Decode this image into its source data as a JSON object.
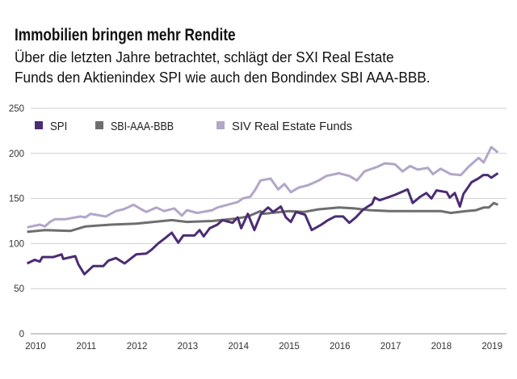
{
  "header": {
    "title": "Immobilien bringen mehr Rendite",
    "subtitle_line1": "Über die letzten Jahre betrachtet, schlägt der SXI Real Estate",
    "subtitle_line2": "Funds den Aktienindex SPI wie auch den Bondindex SBI AAA-BBB."
  },
  "chart_data": {
    "type": "line",
    "title": "Immobilien bringen mehr Rendite",
    "xlabel": "",
    "ylabel": "",
    "ylim": [
      0,
      250
    ],
    "xlim": [
      2010,
      2019
    ],
    "yticks": [
      0,
      50,
      100,
      150,
      200,
      250
    ],
    "xticks": [
      "2010",
      "2011",
      "2012",
      "2013",
      "2014",
      "2015",
      "2016",
      "2017",
      "2018",
      "2019"
    ],
    "grid": "horizontal",
    "legend_placement": "top-left",
    "series": [
      {
        "name": "SPI",
        "color": "#4b2d73",
        "x": [
          2009.85,
          2010.0,
          2010.1,
          2010.15,
          2010.37,
          2010.53,
          2010.56,
          2010.8,
          2010.86,
          2010.98,
          2011.15,
          2011.35,
          2011.45,
          2011.6,
          2011.77,
          2012.0,
          2012.2,
          2012.3,
          2012.43,
          2012.57,
          2012.7,
          2012.83,
          2012.93,
          2013.15,
          2013.25,
          2013.33,
          2013.45,
          2013.6,
          2013.7,
          2013.9,
          2014.0,
          2014.07,
          2014.2,
          2014.33,
          2014.46,
          2014.6,
          2014.7,
          2014.85,
          2014.95,
          2015.05,
          2015.15,
          2015.33,
          2015.46,
          2015.65,
          2015.78,
          2015.92,
          2016.08,
          2016.2,
          2016.33,
          2016.48,
          2016.65,
          2016.7,
          2016.8,
          2016.95,
          2017.1,
          2017.35,
          2017.45,
          2017.6,
          2017.72,
          2017.82,
          2017.92,
          2018.12,
          2018.18,
          2018.28,
          2018.38,
          2018.45,
          2018.61,
          2018.74,
          2018.84,
          2018.93,
          2019.0,
          2019.13
        ],
        "values": [
          78,
          82,
          80,
          85,
          85,
          88,
          83,
          86,
          77,
          66,
          75,
          75,
          81,
          84,
          78,
          88,
          89,
          93,
          100,
          106,
          112,
          101,
          109,
          109,
          115,
          108,
          117,
          121,
          126,
          123,
          129,
          117,
          133,
          115,
          133,
          140,
          135,
          141,
          129,
          124,
          135,
          132,
          115,
          121,
          126,
          130,
          130,
          123,
          129,
          138,
          144,
          151,
          148,
          151,
          154,
          160,
          145,
          152,
          156,
          150,
          159,
          157,
          151,
          156,
          141,
          155,
          168,
          172,
          176,
          176,
          173,
          178
        ]
      },
      {
        "name": "SBI-AAA-BBB",
        "color": "#6e6e6e",
        "x": [
          2009.85,
          2010.2,
          2010.7,
          2011.0,
          2011.5,
          2012.0,
          2012.7,
          2013.0,
          2013.5,
          2014.0,
          2014.2,
          2014.45,
          2014.5,
          2015.0,
          2015.3,
          2015.6,
          2016.0,
          2016.3,
          2016.6,
          2017.0,
          2017.5,
          2018.0,
          2018.2,
          2018.5,
          2018.7,
          2018.85,
          2018.95,
          2019.05,
          2019.13
        ],
        "values": [
          113,
          115,
          114,
          119,
          121,
          122,
          126,
          124,
          125,
          128,
          130,
          136,
          133,
          136,
          135,
          138,
          140,
          139,
          137,
          136,
          136,
          136,
          134,
          136,
          137,
          140,
          140,
          145,
          143
        ]
      },
      {
        "name": "SIV Real Estate Funds",
        "color": "#b3a6c8",
        "x": [
          2009.85,
          2010.1,
          2010.2,
          2010.3,
          2010.4,
          2010.6,
          2010.9,
          2011.0,
          2011.1,
          2011.4,
          2011.6,
          2011.75,
          2011.95,
          2012.1,
          2012.2,
          2012.4,
          2012.55,
          2012.75,
          2012.9,
          2013.0,
          2013.2,
          2013.5,
          2013.6,
          2013.8,
          2014.0,
          2014.1,
          2014.25,
          2014.35,
          2014.45,
          2014.65,
          2014.8,
          2014.92,
          2015.05,
          2015.2,
          2015.4,
          2015.6,
          2015.75,
          2016.0,
          2016.2,
          2016.35,
          2016.5,
          2016.75,
          2016.9,
          2017.1,
          2017.25,
          2017.4,
          2017.55,
          2017.75,
          2017.85,
          2018.0,
          2018.2,
          2018.4,
          2018.55,
          2018.75,
          2018.85,
          2019.0,
          2019.13
        ],
        "values": [
          118,
          121,
          119,
          124,
          127,
          127,
          130,
          129,
          133,
          130,
          136,
          138,
          143,
          138,
          135,
          140,
          136,
          139,
          131,
          137,
          134,
          137,
          140,
          143,
          146,
          150,
          152,
          160,
          170,
          172,
          160,
          166,
          157,
          162,
          165,
          170,
          175,
          178,
          175,
          170,
          180,
          185,
          189,
          188,
          180,
          186,
          182,
          184,
          177,
          183,
          177,
          176,
          185,
          195,
          190,
          207,
          201
        ]
      }
    ]
  }
}
